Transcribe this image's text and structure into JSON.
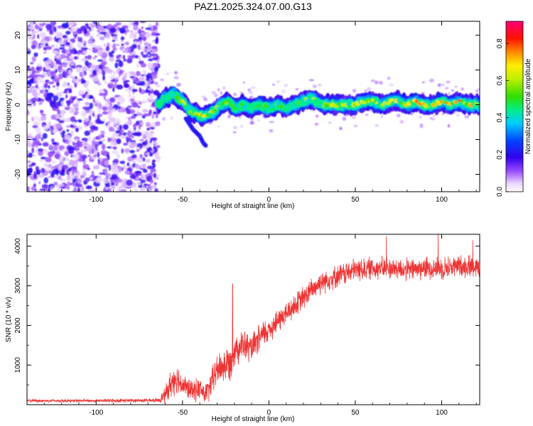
{
  "title": "PAZ1.2025.324.07.00.G13",
  "colors": {
    "snr_line": "#ee3333",
    "frame": "#000000",
    "background": "#ffffff"
  },
  "chart_data": [
    {
      "type": "heatmap",
      "name": "spectrogram",
      "xlabel": "Height of straight line (km)",
      "ylabel": "Frequency (Hz)",
      "xlim": [
        -140,
        122
      ],
      "ylim": [
        -25,
        24
      ],
      "xticks": [
        "-100",
        "-50",
        "0",
        "50",
        "100"
      ],
      "xtick_values": [
        -100,
        -50,
        0,
        50,
        100
      ],
      "yticks": [
        "-20",
        "-10",
        "0",
        "10",
        "20"
      ],
      "ytick_values": [
        -20,
        -10,
        0,
        10,
        20
      ],
      "noise_region_x": [
        -140,
        -64
      ],
      "ridge": {
        "x": [
          -64,
          -60,
          -55,
          -50,
          -45,
          -40,
          -36,
          -32,
          -28,
          -24,
          -20,
          -15,
          -10,
          -5,
          0,
          5,
          10,
          15,
          20,
          25,
          30,
          35,
          40,
          45,
          50,
          55,
          60,
          65,
          70,
          75,
          80,
          85,
          90,
          95,
          100,
          105,
          110,
          115,
          122
        ],
        "freq": [
          0,
          2,
          3,
          1,
          -2,
          -3,
          -3,
          -2,
          0,
          1,
          -1,
          0,
          -1,
          0,
          -1,
          0,
          -1,
          0,
          1,
          2,
          0,
          0,
          0,
          0,
          0,
          1,
          1,
          0,
          1,
          1,
          0,
          1,
          0,
          0,
          1,
          0,
          1,
          0,
          0
        ],
        "amplitude": [
          0.3,
          0.55,
          0.6,
          0.7,
          0.75,
          0.85,
          0.9,
          0.8,
          0.7,
          0.65,
          0.6,
          0.6,
          0.55,
          0.6,
          0.6,
          0.6,
          0.55,
          0.6,
          0.65,
          0.7,
          0.7,
          0.75,
          0.75,
          0.8,
          0.75,
          0.8,
          0.8,
          0.75,
          0.8,
          0.8,
          0.8,
          0.85,
          0.85,
          0.85,
          0.9,
          0.95,
          0.9,
          0.85,
          0.8
        ]
      },
      "branch": {
        "x": [
          -48,
          -44,
          -40,
          -38,
          -36
        ],
        "freq": [
          -4,
          -7,
          -9,
          -11,
          -12
        ]
      },
      "colorbar": {
        "label": "Normalized spectral amplitude",
        "ticks": [
          "0.0",
          "0.2",
          "0.4",
          "0.6",
          "0.8"
        ],
        "tick_values": [
          0.0,
          0.2,
          0.4,
          0.6,
          0.8
        ],
        "range": [
          0,
          0.92
        ]
      }
    },
    {
      "type": "line",
      "name": "snr",
      "xlabel": "Height of straight line (km)",
      "ylabel": "SNR (10 * v/v)",
      "xlim": [
        -140,
        122
      ],
      "ylim": [
        0,
        4300
      ],
      "xticks": [
        "-100",
        "-50",
        "0",
        "50",
        "100"
      ],
      "xtick_values": [
        -100,
        -50,
        0,
        50,
        100
      ],
      "yticks": [
        "1000",
        "2000",
        "3000",
        "4000"
      ],
      "ytick_values": [
        1000,
        2000,
        3000,
        4000
      ],
      "envelope": {
        "x": [
          -140,
          -100,
          -64,
          -60,
          -57,
          -54,
          -50,
          -45,
          -40,
          -37,
          -34,
          -30,
          -25,
          -22,
          -20,
          -15,
          -10,
          -5,
          0,
          5,
          10,
          15,
          20,
          25,
          30,
          40,
          50,
          60,
          70,
          80,
          90,
          100,
          110,
          122
        ],
        "mean": [
          100,
          100,
          110,
          250,
          500,
          700,
          500,
          350,
          400,
          250,
          450,
          900,
          1000,
          1100,
          1400,
          1500,
          1400,
          1700,
          1900,
          2100,
          2300,
          2500,
          2700,
          2900,
          3100,
          3250,
          3400,
          3450,
          3450,
          3400,
          3450,
          3450,
          3500,
          3500
        ],
        "jitter": [
          40,
          40,
          50,
          200,
          350,
          400,
          300,
          250,
          300,
          250,
          350,
          400,
          450,
          450,
          400,
          400,
          350,
          350,
          350,
          300,
          300,
          300,
          300,
          300,
          300,
          280,
          300,
          280,
          280,
          280,
          280,
          280,
          280,
          280
        ]
      },
      "spikes": [
        {
          "x": -21,
          "y": 3050
        },
        {
          "x": 68,
          "y": 4250
        },
        {
          "x": 98,
          "y": 4300
        },
        {
          "x": 118,
          "y": 4150
        }
      ]
    }
  ]
}
